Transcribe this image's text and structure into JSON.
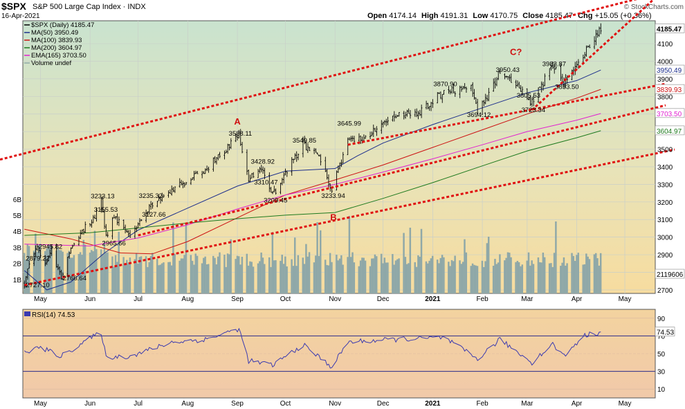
{
  "header": {
    "symbol": "$SPX",
    "name": "S&P 500 Large Cap Index",
    "exchange": "INDX",
    "date": "16-Apr-2021",
    "open_label": "Open",
    "open": "4174.14",
    "high_label": "High",
    "high": "4191.31",
    "low_label": "Low",
    "low": "4170.75",
    "close_label": "Close",
    "close": "4185.47",
    "chg_label": "Chg",
    "chg": "+15.05 (+0.36%)",
    "watermark": "© StockCharts.com"
  },
  "legend": [
    {
      "text": "$SPX (Daily) 4185.47",
      "color": "#000000"
    },
    {
      "text": "MA(50) 3950.49",
      "color": "#1c2e8c"
    },
    {
      "text": "MA(100) 3839.93",
      "color": "#cc1111"
    },
    {
      "text": "MA(200) 3604.97",
      "color": "#1e7a1e"
    },
    {
      "text": "EMA(165) 3703.50",
      "color": "#e020d0"
    },
    {
      "text": "Volume undef",
      "color": "#8fa8a8"
    }
  ],
  "price_axis": {
    "ticks": [
      "4100",
      "4000",
      "3900",
      "3800",
      "3700",
      "3600",
      "3500",
      "3400",
      "3300",
      "3200",
      "3100",
      "3000",
      "2900",
      "2800",
      "2700"
    ],
    "badges": [
      {
        "text": "4185.47",
        "value": 4185.47,
        "bg": "#ffffff",
        "fg": "#000000",
        "bold": true
      },
      {
        "text": "3950.49",
        "value": 3950.49,
        "bg": "#ffffff",
        "fg": "#1c2e8c"
      },
      {
        "text": "3839.93",
        "value": 3839.93,
        "bg": "#ffffff",
        "fg": "#cc1111"
      },
      {
        "text": "3703.50",
        "value": 3703.5,
        "bg": "#ffffff",
        "fg": "#e020d0"
      },
      {
        "text": "3604.97",
        "value": 3604.97,
        "bg": "#ffffff",
        "fg": "#1e7a1e"
      },
      {
        "text": "2119606",
        "value": 2790,
        "bg": "#ffffff",
        "fg": "#000000"
      }
    ]
  },
  "volume_axis": {
    "ticks": [
      "6B",
      "5B",
      "4B",
      "3B",
      "2B",
      "1B"
    ]
  },
  "x_axis": {
    "months": [
      {
        "label": "May",
        "date": "2020-05-01",
        "bold": false
      },
      {
        "label": "Jun",
        "date": "2020-06-01",
        "bold": false
      },
      {
        "label": "Jul",
        "date": "2020-07-01",
        "bold": false
      },
      {
        "label": "Aug",
        "date": "2020-08-01",
        "bold": false
      },
      {
        "label": "Sep",
        "date": "2020-09-01",
        "bold": false
      },
      {
        "label": "Oct",
        "date": "2020-10-01",
        "bold": false
      },
      {
        "label": "Nov",
        "date": "2020-11-01",
        "bold": false
      },
      {
        "label": "Dec",
        "date": "2020-12-01",
        "bold": false
      },
      {
        "label": "2021",
        "date": "2021-01-01",
        "bold": true
      },
      {
        "label": "Feb",
        "date": "2021-02-01",
        "bold": false
      },
      {
        "label": "Mar",
        "date": "2021-03-01",
        "bold": false
      },
      {
        "label": "Apr",
        "date": "2021-04-01",
        "bold": false
      },
      {
        "label": "May",
        "date": "2021-05-01",
        "bold": false
      }
    ]
  },
  "wave_labels": [
    {
      "text": "A",
      "date": "2020-09-01",
      "value": 3640
    },
    {
      "text": "B",
      "date": "2020-10-31",
      "value": 3095
    },
    {
      "text": "C?",
      "date": "2021-02-22",
      "value": 4035
    }
  ],
  "chart_data": {
    "type": "line",
    "title": "S&P 500 Large Cap Index",
    "xlabel": "",
    "ylabel": "",
    "ylim": [
      2680,
      4230
    ],
    "x_range": [
      "2020-04-20",
      "2021-05-20"
    ],
    "grid": true,
    "price_key_points": [
      {
        "date": "2020-04-21",
        "value": 2736
      },
      {
        "date": "2020-04-24",
        "value": 2836
      },
      {
        "date": "2020-04-29",
        "value": 2939
      },
      {
        "date": "2020-05-04",
        "value": 2842
      },
      {
        "date": "2020-05-08",
        "value": 2929
      },
      {
        "date": "2020-05-14",
        "value": 2767
      },
      {
        "date": "2020-05-19",
        "value": 2922
      },
      {
        "date": "2020-05-27",
        "value": 3036
      },
      {
        "date": "2020-06-04",
        "value": 3112
      },
      {
        "date": "2020-06-08",
        "value": 3232
      },
      {
        "date": "2020-06-11",
        "value": 3002
      },
      {
        "date": "2020-06-16",
        "value": 3124
      },
      {
        "date": "2020-06-26",
        "value": 3009
      },
      {
        "date": "2020-07-08",
        "value": 3169
      },
      {
        "date": "2020-07-22",
        "value": 3276
      },
      {
        "date": "2020-08-12",
        "value": 3380
      },
      {
        "date": "2020-09-02",
        "value": 3580
      },
      {
        "date": "2020-09-08",
        "value": 3331
      },
      {
        "date": "2020-09-16",
        "value": 3385
      },
      {
        "date": "2020-09-23",
        "value": 3237
      },
      {
        "date": "2020-10-12",
        "value": 3534
      },
      {
        "date": "2020-10-22",
        "value": 3453
      },
      {
        "date": "2020-10-30",
        "value": 3270
      },
      {
        "date": "2020-11-09",
        "value": 3550
      },
      {
        "date": "2020-11-20",
        "value": 3557
      },
      {
        "date": "2020-12-08",
        "value": 3702
      },
      {
        "date": "2020-12-21",
        "value": 3694
      },
      {
        "date": "2021-01-08",
        "value": 3824
      },
      {
        "date": "2021-01-25",
        "value": 3855
      },
      {
        "date": "2021-01-29",
        "value": 3714
      },
      {
        "date": "2021-02-12",
        "value": 3934
      },
      {
        "date": "2021-03-04",
        "value": 3768
      },
      {
        "date": "2021-03-17",
        "value": 3974
      },
      {
        "date": "2021-03-24",
        "value": 3889
      },
      {
        "date": "2021-04-16",
        "value": 4185
      }
    ],
    "price_annotations": [
      {
        "text": "2727.10",
        "date": "2020-04-21",
        "value": 2727.1
      },
      {
        "text": "2879.22",
        "date": "2020-04-21",
        "value": 2879.22
      },
      {
        "text": "2945.82",
        "date": "2020-04-29",
        "value": 2945.82
      },
      {
        "text": "2766.64",
        "date": "2020-05-14",
        "value": 2766.64
      },
      {
        "text": "3233.13",
        "date": "2020-06-08",
        "value": 3233.13
      },
      {
        "text": "3155.53",
        "date": "2020-06-10",
        "value": 3155.53
      },
      {
        "text": "2965.66",
        "date": "2020-06-15",
        "value": 2965.66
      },
      {
        "text": "3235.32",
        "date": "2020-07-08",
        "value": 3235.32
      },
      {
        "text": "3127.66",
        "date": "2020-07-10",
        "value": 3127.66
      },
      {
        "text": "3588.11",
        "date": "2020-09-02",
        "value": 3588.11
      },
      {
        "text": "3428.92",
        "date": "2020-09-16",
        "value": 3428.92
      },
      {
        "text": "3310.47",
        "date": "2020-09-18",
        "value": 3310.47
      },
      {
        "text": "3209.45",
        "date": "2020-09-24",
        "value": 3209.45
      },
      {
        "text": "3549.85",
        "date": "2020-10-12",
        "value": 3549.85
      },
      {
        "text": "3233.94",
        "date": "2020-10-30",
        "value": 3233.94
      },
      {
        "text": "3645.99",
        "date": "2020-11-09",
        "value": 3645.99
      },
      {
        "text": "3870.90",
        "date": "2021-01-08",
        "value": 3870.9
      },
      {
        "text": "3694.12",
        "date": "2021-01-29",
        "value": 3694.12
      },
      {
        "text": "3950.43",
        "date": "2021-02-16",
        "value": 3950.43
      },
      {
        "text": "3805.53",
        "date": "2021-03-01",
        "value": 3805.53
      },
      {
        "text": "3723.34",
        "date": "2021-03-04",
        "value": 3723.34
      },
      {
        "text": "3983.87",
        "date": "2021-03-17",
        "value": 3983.87
      },
      {
        "text": "3853.50",
        "date": "2021-03-25",
        "value": 3853.5
      }
    ],
    "moving_averages": [
      {
        "name": "MA(50)",
        "color": "#1c2e8c",
        "points": [
          {
            "date": "2020-04-21",
            "value": 2810
          },
          {
            "date": "2020-05-05",
            "value": 2700
          },
          {
            "date": "2020-05-20",
            "value": 2745
          },
          {
            "date": "2020-06-10",
            "value": 2910
          },
          {
            "date": "2020-07-01",
            "value": 3040
          },
          {
            "date": "2020-08-01",
            "value": 3165
          },
          {
            "date": "2020-09-01",
            "value": 3290
          },
          {
            "date": "2020-10-01",
            "value": 3375
          },
          {
            "date": "2020-11-01",
            "value": 3390
          },
          {
            "date": "2020-11-15",
            "value": 3462
          },
          {
            "date": "2020-12-01",
            "value": 3535
          },
          {
            "date": "2021-01-01",
            "value": 3640
          },
          {
            "date": "2021-02-01",
            "value": 3735
          },
          {
            "date": "2021-03-01",
            "value": 3820
          },
          {
            "date": "2021-04-01",
            "value": 3890
          },
          {
            "date": "2021-04-16",
            "value": 3950
          }
        ]
      },
      {
        "name": "MA(100)",
        "color": "#cc1111",
        "points": [
          {
            "date": "2020-04-21",
            "value": 3045
          },
          {
            "date": "2020-05-20",
            "value": 2990
          },
          {
            "date": "2020-06-20",
            "value": 2910
          },
          {
            "date": "2020-07-10",
            "value": 2905
          },
          {
            "date": "2020-08-01",
            "value": 2975
          },
          {
            "date": "2020-09-01",
            "value": 3110
          },
          {
            "date": "2020-10-01",
            "value": 3240
          },
          {
            "date": "2020-11-01",
            "value": 3325
          },
          {
            "date": "2020-12-01",
            "value": 3410
          },
          {
            "date": "2021-01-01",
            "value": 3510
          },
          {
            "date": "2021-02-01",
            "value": 3610
          },
          {
            "date": "2021-03-01",
            "value": 3700
          },
          {
            "date": "2021-04-01",
            "value": 3790
          },
          {
            "date": "2021-04-16",
            "value": 3840
          }
        ]
      },
      {
        "name": "EMA(165)",
        "color": "#e020d0",
        "points": [
          {
            "date": "2020-04-21",
            "value": 2960
          },
          {
            "date": "2020-06-01",
            "value": 2950
          },
          {
            "date": "2020-07-01",
            "value": 2995
          },
          {
            "date": "2020-08-01",
            "value": 3070
          },
          {
            "date": "2020-09-01",
            "value": 3160
          },
          {
            "date": "2020-10-01",
            "value": 3240
          },
          {
            "date": "2020-11-01",
            "value": 3300
          },
          {
            "date": "2020-12-01",
            "value": 3370
          },
          {
            "date": "2021-01-01",
            "value": 3445
          },
          {
            "date": "2021-02-01",
            "value": 3525
          },
          {
            "date": "2021-03-01",
            "value": 3600
          },
          {
            "date": "2021-04-01",
            "value": 3665
          },
          {
            "date": "2021-04-16",
            "value": 3703
          }
        ]
      },
      {
        "name": "MA(200)",
        "color": "#1e7a1e",
        "points": [
          {
            "date": "2020-04-21",
            "value": 3010
          },
          {
            "date": "2020-06-01",
            "value": 3025
          },
          {
            "date": "2020-07-01",
            "value": 3052
          },
          {
            "date": "2020-08-01",
            "value": 3080
          },
          {
            "date": "2020-09-01",
            "value": 3105
          },
          {
            "date": "2020-10-01",
            "value": 3125
          },
          {
            "date": "2020-11-01",
            "value": 3140
          },
          {
            "date": "2020-12-01",
            "value": 3220
          },
          {
            "date": "2021-01-01",
            "value": 3310
          },
          {
            "date": "2021-02-01",
            "value": 3405
          },
          {
            "date": "2021-03-01",
            "value": 3490
          },
          {
            "date": "2021-04-01",
            "value": 3565
          },
          {
            "date": "2021-04-16",
            "value": 3605
          }
        ]
      }
    ],
    "trendlines": [
      {
        "name": "upper-channel",
        "color": "#e01010",
        "from": {
          "date": "2020-04-01",
          "value": 3430
        },
        "to": {
          "date": "2021-05-20",
          "value": 4380
        }
      },
      {
        "name": "wedge-upper",
        "color": "#e01010",
        "from": {
          "date": "2021-03-04",
          "value": 3723
        },
        "to": {
          "date": "2021-05-20",
          "value": 4360
        }
      },
      {
        "name": "wedge-lower",
        "color": "#e01010",
        "from": {
          "date": "2020-11-09",
          "value": 3525
        },
        "to": {
          "date": "2021-05-20",
          "value": 3860
        }
      },
      {
        "name": "lower-channel-1",
        "color": "#e01010",
        "from": {
          "date": "2020-07-01",
          "value": 3010
        },
        "to": {
          "date": "2021-05-20",
          "value": 3735
        }
      },
      {
        "name": "lower-channel-2",
        "color": "#e01010",
        "from": {
          "date": "2020-04-21",
          "value": 2727
        },
        "to": {
          "date": "2021-05-20",
          "value": 3475
        }
      }
    ],
    "volume": {
      "last": "2119606",
      "max_display_B": 7
    },
    "rsi": {
      "name": "RSI(14)",
      "last": "74.53",
      "ylim": [
        0,
        100
      ],
      "ticks": [
        90,
        70,
        50,
        30,
        10
      ],
      "overbought": 70,
      "oversold": 30,
      "points": [
        {
          "date": "2020-04-21",
          "value": 52
        },
        {
          "date": "2020-05-01",
          "value": 57
        },
        {
          "date": "2020-05-14",
          "value": 47
        },
        {
          "date": "2020-05-27",
          "value": 62
        },
        {
          "date": "2020-06-08",
          "value": 74
        },
        {
          "date": "2020-06-11",
          "value": 46
        },
        {
          "date": "2020-06-26",
          "value": 47
        },
        {
          "date": "2020-07-22",
          "value": 63
        },
        {
          "date": "2020-08-12",
          "value": 66
        },
        {
          "date": "2020-09-02",
          "value": 78
        },
        {
          "date": "2020-09-08",
          "value": 42
        },
        {
          "date": "2020-09-23",
          "value": 37
        },
        {
          "date": "2020-10-12",
          "value": 60
        },
        {
          "date": "2020-10-30",
          "value": 35
        },
        {
          "date": "2020-11-09",
          "value": 63
        },
        {
          "date": "2020-12-08",
          "value": 66
        },
        {
          "date": "2021-01-08",
          "value": 68
        },
        {
          "date": "2021-01-29",
          "value": 44
        },
        {
          "date": "2021-02-12",
          "value": 66
        },
        {
          "date": "2021-03-04",
          "value": 40
        },
        {
          "date": "2021-03-17",
          "value": 61
        },
        {
          "date": "2021-03-24",
          "value": 47
        },
        {
          "date": "2021-04-05",
          "value": 70
        },
        {
          "date": "2021-04-16",
          "value": 74.53
        }
      ]
    }
  }
}
